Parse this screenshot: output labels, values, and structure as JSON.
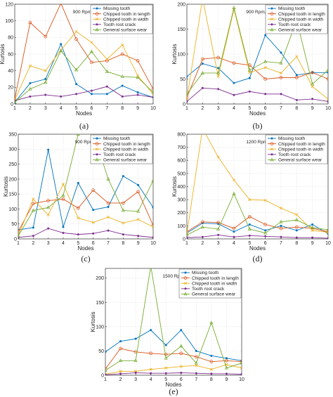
{
  "chart_data": [
    {
      "type": "line",
      "caption": "(a)",
      "annotation": "900 Rpm, 0 Nm",
      "xlabel": "Nodes",
      "ylabel": "Kurtosis",
      "xlim": [
        1,
        10
      ],
      "ylim": [
        0,
        120
      ],
      "xticks": [
        1,
        2,
        3,
        4,
        5,
        6,
        7,
        8,
        9,
        10
      ],
      "yticks": [
        0,
        20,
        40,
        60,
        80,
        100,
        120
      ],
      "grid": true,
      "legend": "top-right",
      "x": [
        1,
        2,
        3,
        4,
        5,
        6,
        7,
        8,
        9,
        10
      ],
      "series": [
        {
          "name": "Missing tooth",
          "color": "#0072BD",
          "marker": "dot",
          "values": [
            2,
            25,
            30,
            72,
            24,
            12,
            12,
            22,
            14,
            8
          ]
        },
        {
          "name": "Chipped tooth in length",
          "color": "#D95319",
          "marker": "o",
          "values": [
            6,
            98,
            81,
            121,
            78,
            50,
            52,
            60,
            52,
            18
          ]
        },
        {
          "name": "Chipped tooth in width",
          "color": "#EDB120",
          "marker": "x",
          "values": [
            5,
            46,
            40,
            65,
            87,
            74,
            54,
            71,
            34,
            12
          ]
        },
        {
          "name": "Tooth root crack",
          "color": "#7E2F8E",
          "marker": "dot",
          "values": [
            4,
            9,
            11,
            9,
            12,
            16,
            21,
            9,
            11,
            8
          ]
        },
        {
          "name": "General surface wear",
          "color": "#77AC30",
          "marker": "triangle",
          "values": [
            2,
            18,
            26,
            64,
            41,
            63,
            39,
            33,
            32,
            14
          ]
        }
      ]
    },
    {
      "type": "line",
      "caption": "(b)",
      "annotation": "900 Rpm, 8 Nm",
      "xlabel": "Nodes",
      "ylabel": "Kurtosis",
      "xlim": [
        1,
        10
      ],
      "ylim": [
        0,
        200
      ],
      "xticks": [
        1,
        2,
        3,
        4,
        5,
        6,
        7,
        8,
        9,
        10
      ],
      "yticks": [
        0,
        50,
        100,
        150,
        200
      ],
      "grid": true,
      "legend": "top-right",
      "x": [
        1,
        2,
        3,
        4,
        5,
        6,
        7,
        8,
        9,
        10
      ],
      "series": [
        {
          "name": "Missing tooth",
          "color": "#0072BD",
          "marker": "dot",
          "values": [
            55,
            81,
            72,
            42,
            52,
            138,
            103,
            58,
            63,
            63
          ]
        },
        {
          "name": "Chipped tooth in length",
          "color": "#D95319",
          "marker": "o",
          "values": [
            13,
            90,
            93,
            82,
            78,
            50,
            53,
            53,
            63,
            50
          ]
        },
        {
          "name": "Chipped tooth in width",
          "color": "#EDB120",
          "marker": "x",
          "values": [
            10,
            212,
            55,
            190,
            63,
            73,
            62,
            95,
            35,
            10
          ]
        },
        {
          "name": "Tooth root crack",
          "color": "#7E2F8E",
          "marker": "dot",
          "values": [
            5,
            32,
            30,
            18,
            25,
            20,
            20,
            8,
            10,
            5
          ]
        },
        {
          "name": "General surface wear",
          "color": "#77AC30",
          "marker": "triangle",
          "values": [
            20,
            62,
            62,
            193,
            68,
            85,
            82,
            168,
            40,
            68
          ]
        }
      ]
    },
    {
      "type": "line",
      "caption": "(c)",
      "annotation": "900 Rpm, 11Nm",
      "xlabel": "Nodes",
      "ylabel": "Kurtosis",
      "xlim": [
        1,
        10
      ],
      "ylim": [
        0,
        350
      ],
      "xticks": [
        1,
        2,
        3,
        4,
        5,
        6,
        7,
        8,
        9,
        10
      ],
      "yticks": [
        0,
        50,
        100,
        150,
        200,
        250,
        300,
        350
      ],
      "grid": true,
      "legend": "top-right",
      "x": [
        1,
        2,
        3,
        4,
        5,
        6,
        7,
        8,
        9,
        10
      ],
      "series": [
        {
          "name": "Missing tooth",
          "color": "#0072BD",
          "marker": "dot",
          "values": [
            30,
            38,
            298,
            40,
            187,
            97,
            107,
            210,
            180,
            105
          ]
        },
        {
          "name": "Chipped tooth in length",
          "color": "#D95319",
          "marker": "o",
          "values": [
            25,
            118,
            128,
            133,
            103,
            163,
            120,
            120,
            158,
            45
          ]
        },
        {
          "name": "Chipped tooth in width",
          "color": "#EDB120",
          "marker": "x",
          "values": [
            12,
            133,
            80,
            183,
            70,
            55,
            73,
            53,
            65,
            40
          ]
        },
        {
          "name": "Tooth root crack",
          "color": "#7E2F8E",
          "marker": "dot",
          "values": [
            5,
            10,
            35,
            20,
            15,
            18,
            28,
            15,
            10,
            5
          ]
        },
        {
          "name": "General surface wear",
          "color": "#77AC30",
          "marker": "triangle",
          "values": [
            10,
            95,
            105,
            145,
            350,
            358,
            200,
            95,
            92,
            195
          ]
        }
      ]
    },
    {
      "type": "line",
      "caption": "(d)",
      "annotation": "1200 Rpm, 11Nm",
      "xlabel": "Nodes",
      "ylabel": "Kurtosis",
      "xlim": [
        1,
        10
      ],
      "ylim": [
        0,
        800
      ],
      "xticks": [
        1,
        2,
        3,
        4,
        5,
        6,
        7,
        8,
        9,
        10
      ],
      "yticks": [
        0,
        100,
        200,
        300,
        400,
        500,
        600,
        700,
        800
      ],
      "grid": true,
      "legend": "top-right",
      "x": [
        1,
        2,
        3,
        4,
        5,
        6,
        7,
        8,
        9,
        10
      ],
      "series": [
        {
          "name": "Missing tooth",
          "color": "#0072BD",
          "marker": "dot",
          "values": [
            45,
            120,
            115,
            55,
            110,
            65,
            100,
            65,
            110,
            40
          ]
        },
        {
          "name": "Chipped tooth in length",
          "color": "#D95319",
          "marker": "o",
          "values": [
            55,
            130,
            125,
            80,
            170,
            110,
            80,
            90,
            80,
            55
          ]
        },
        {
          "name": "Chipped tooth in width",
          "color": "#EDB120",
          "marker": "x",
          "values": [
            40,
            845,
            625,
            450,
            300,
            295,
            235,
            185,
            65,
            50
          ]
        },
        {
          "name": "Tooth root crack",
          "color": "#7E2F8E",
          "marker": "dot",
          "values": [
            10,
            15,
            30,
            15,
            25,
            20,
            15,
            10,
            10,
            5
          ]
        },
        {
          "name": "General surface wear",
          "color": "#77AC30",
          "marker": "triangle",
          "values": [
            30,
            90,
            75,
            345,
            75,
            45,
            130,
            145,
            85,
            70
          ]
        }
      ]
    },
    {
      "type": "line",
      "caption": "(e)",
      "annotation": "1500 Rpm, 8 Nm",
      "xlabel": "Nodes",
      "ylabel": "Kurtosis",
      "xlim": [
        1,
        10
      ],
      "ylim": [
        0,
        220
      ],
      "xticks": [
        1,
        2,
        3,
        4,
        5,
        6,
        7,
        8,
        9,
        10
      ],
      "yticks": [
        0,
        50,
        100,
        150,
        200
      ],
      "grid": true,
      "legend": "top-right",
      "x": [
        1,
        2,
        3,
        4,
        5,
        6,
        7,
        8,
        9,
        10
      ],
      "series": [
        {
          "name": "Missing tooth",
          "color": "#0072BD",
          "marker": "dot",
          "values": [
            48,
            70,
            75,
            93,
            62,
            93,
            50,
            40,
            35,
            30
          ]
        },
        {
          "name": "Chipped tooth in length",
          "color": "#D95319",
          "marker": "o",
          "values": [
            13,
            55,
            48,
            45,
            43,
            45,
            38,
            28,
            30,
            28
          ]
        },
        {
          "name": "Chipped tooth in width",
          "color": "#EDB120",
          "marker": "x",
          "values": [
            2,
            8,
            8,
            12,
            15,
            18,
            20,
            12,
            22,
            15
          ]
        },
        {
          "name": "Tooth root crack",
          "color": "#7E2F8E",
          "marker": "dot",
          "values": [
            1,
            3,
            5,
            4,
            4,
            5,
            4,
            3,
            3,
            2
          ]
        },
        {
          "name": "General surface wear",
          "color": "#77AC30",
          "marker": "triangle",
          "values": [
            10,
            30,
            30,
            225,
            35,
            60,
            25,
            108,
            15,
            25
          ]
        }
      ]
    }
  ]
}
